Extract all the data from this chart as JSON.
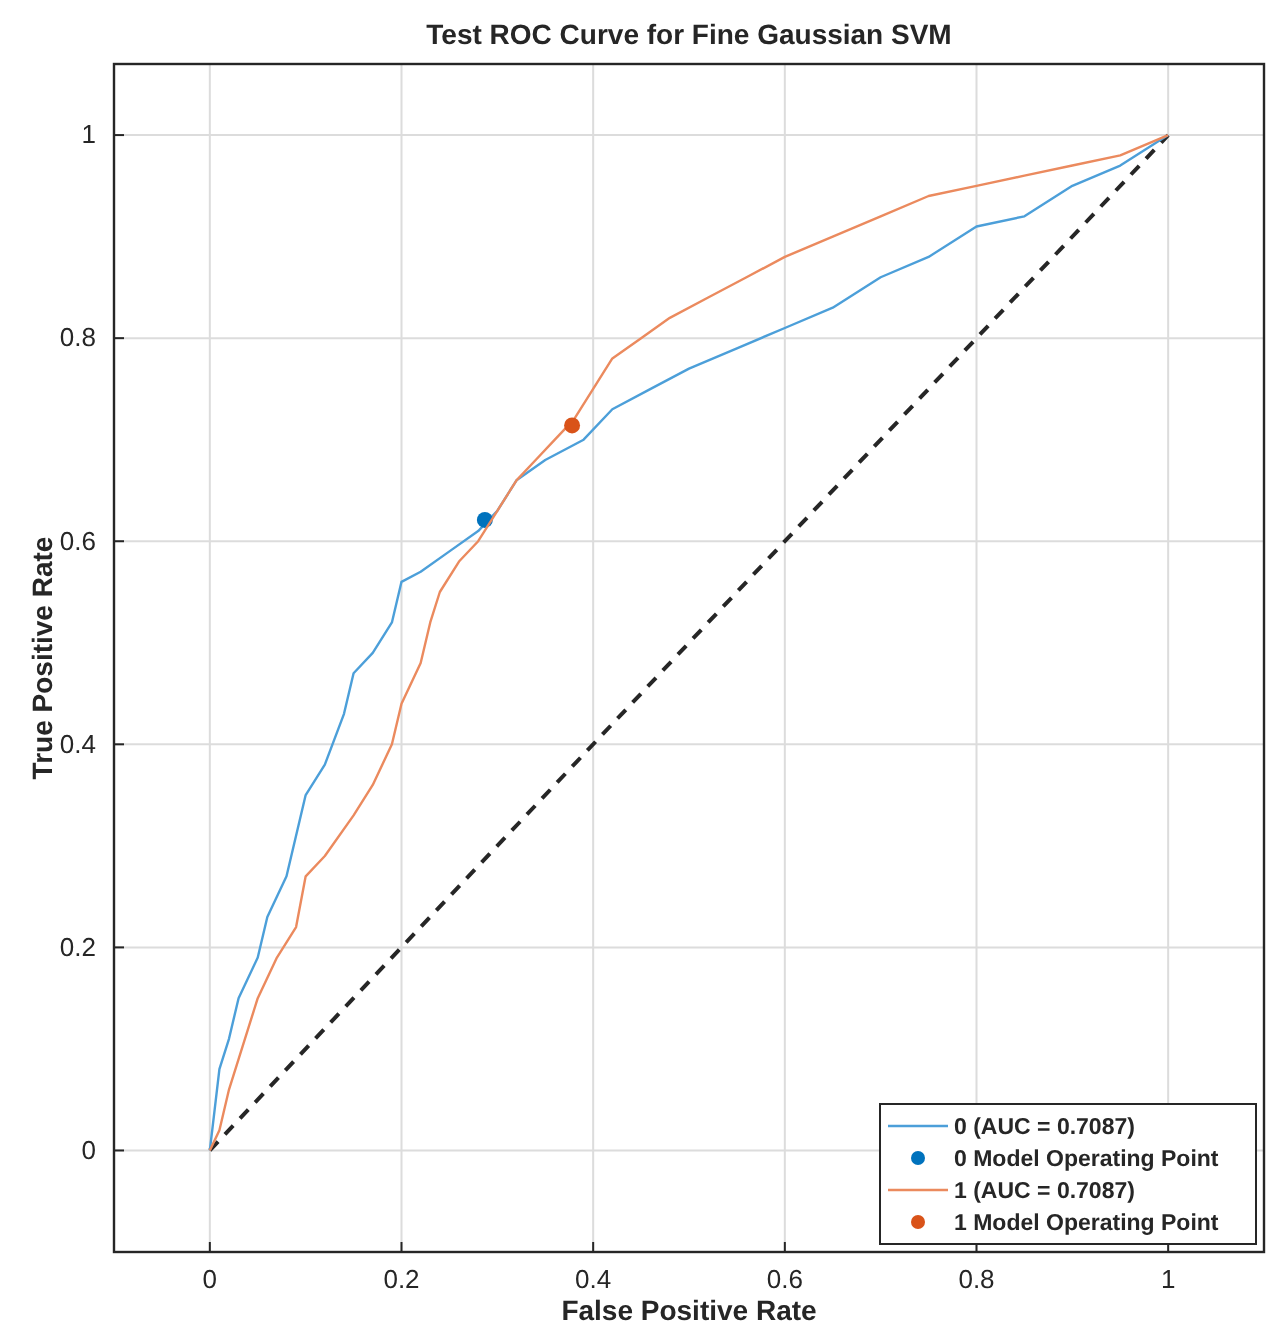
{
  "chart_data": {
    "type": "line",
    "title": "Test ROC Curve for Fine Gaussian SVM",
    "xlabel": "False Positive Rate",
    "ylabel": "True Positive Rate",
    "xlim": [
      -0.1,
      1.1
    ],
    "ylim": [
      -0.1,
      1.07
    ],
    "xticks": [
      0,
      0.2,
      0.4,
      0.6,
      0.8,
      1
    ],
    "yticks": [
      0,
      0.2,
      0.4,
      0.6,
      0.8,
      1
    ],
    "grid": true,
    "legend": "bottom right",
    "series": [
      {
        "x": [
          0,
          1
        ],
        "values": [
          0,
          1
        ],
        "color": "#262626",
        "line_style": "dashed",
        "marker": "none"
      },
      {
        "name": "0 (AUC = 0.7087)",
        "color": "#4c9fd9",
        "line_style": "solid",
        "marker": "none",
        "x": [
          0,
          0.005,
          0.01,
          0.02,
          0.03,
          0.05,
          0.06,
          0.08,
          0.1,
          0.12,
          0.14,
          0.15,
          0.17,
          0.19,
          0.2,
          0.22,
          0.25,
          0.28,
          0.3,
          0.32,
          0.35,
          0.39,
          0.42,
          0.46,
          0.5,
          0.55,
          0.6,
          0.65,
          0.7,
          0.75,
          0.8,
          0.85,
          0.9,
          0.95,
          1
        ],
        "values": [
          0,
          0.04,
          0.08,
          0.11,
          0.15,
          0.19,
          0.23,
          0.27,
          0.35,
          0.38,
          0.43,
          0.47,
          0.49,
          0.52,
          0.56,
          0.57,
          0.59,
          0.61,
          0.63,
          0.66,
          0.68,
          0.7,
          0.73,
          0.75,
          0.77,
          0.79,
          0.81,
          0.83,
          0.86,
          0.88,
          0.91,
          0.92,
          0.95,
          0.97,
          1
        ]
      },
      {
        "type": "scatter",
        "name": "0 Model Operating Point",
        "color": "#0072bd",
        "marker": "circle",
        "x": [
          0.287
        ],
        "values": [
          0.621
        ]
      },
      {
        "name": "1 (AUC = 0.7087)",
        "color": "#eb8a5e",
        "line_style": "solid",
        "marker": "none",
        "x": [
          0,
          0.01,
          0.02,
          0.03,
          0.05,
          0.07,
          0.09,
          0.1,
          0.12,
          0.15,
          0.17,
          0.19,
          0.2,
          0.22,
          0.23,
          0.24,
          0.26,
          0.28,
          0.3,
          0.32,
          0.34,
          0.36,
          0.38,
          0.4,
          0.42,
          0.45,
          0.48,
          0.52,
          0.56,
          0.6,
          0.65,
          0.7,
          0.75,
          0.8,
          0.85,
          0.9,
          0.95,
          1
        ],
        "values": [
          0,
          0.02,
          0.06,
          0.09,
          0.15,
          0.19,
          0.22,
          0.27,
          0.29,
          0.33,
          0.36,
          0.4,
          0.44,
          0.48,
          0.52,
          0.55,
          0.58,
          0.6,
          0.63,
          0.66,
          0.68,
          0.7,
          0.72,
          0.75,
          0.78,
          0.8,
          0.82,
          0.84,
          0.86,
          0.88,
          0.9,
          0.92,
          0.94,
          0.95,
          0.96,
          0.97,
          0.98,
          1
        ]
      },
      {
        "type": "scatter",
        "name": "1 Model Operating Point",
        "color": "#d95319",
        "marker": "circle",
        "x": [
          0.378
        ],
        "values": [
          0.714
        ]
      }
    ]
  }
}
